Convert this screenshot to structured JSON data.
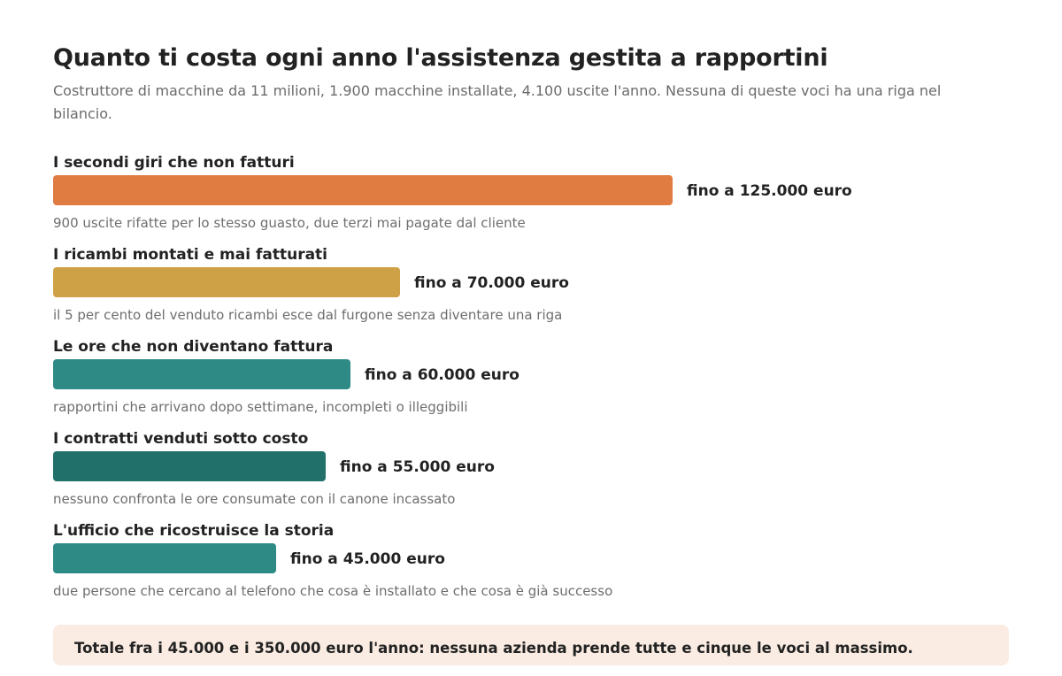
{
  "chart_data": {
    "type": "bar",
    "orientation": "horizontal",
    "title": "Quanto ti costa ogni anno l'assistenza gestita a rapportini",
    "subtitle": "Costruttore di macchine da 11 milioni, 1.900 macchine installate, 4.100 uscite l'anno. Nessuna di queste voci ha una riga nel bilancio.",
    "xlim": [
      0,
      125000
    ],
    "categories": [
      "I secondi giri che non fatturi",
      "I ricambi montati e mai fatturati",
      "Le ore che non diventano fattura",
      "I contratti venduti sotto costo",
      "L'ufficio che ricostruisce la storia"
    ],
    "values": [
      125000,
      70000,
      60000,
      55000,
      45000
    ],
    "value_labels": [
      "fino a 125.000 euro",
      "fino a 70.000 euro",
      "fino a 60.000 euro",
      "fino a 55.000 euro",
      "fino a 45.000 euro"
    ],
    "notes": [
      "900 uscite rifatte per lo stesso guasto, due terzi mai pagate dal cliente",
      "il 5 per cento del venduto ricambi esce dal furgone senza diventare una riga",
      "rapportini che arrivano dopo settimane, incompleti o illeggibili",
      "nessuno confronta le ore consumate con il canone incassato",
      "due persone che cercano al telefono che cosa è installato e che cosa è già successo"
    ],
    "colors": [
      "#e07b42",
      "#cfa146",
      "#2e8a85",
      "#21716a",
      "#2e8a85"
    ],
    "grid": false,
    "legend": "none"
  },
  "total_note": "Totale fra i 45.000 e i 350.000 euro l'anno: nessuna azienda prende tutte e cinque le voci al massimo."
}
